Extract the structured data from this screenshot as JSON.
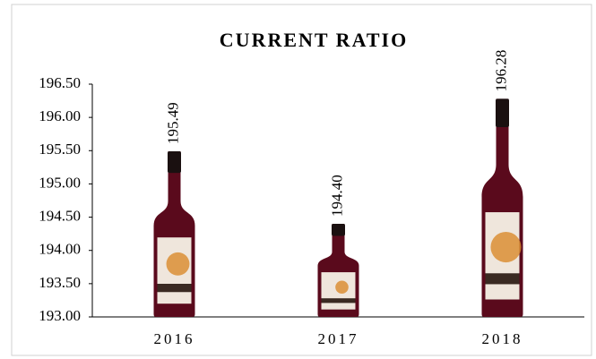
{
  "chart_data": {
    "type": "pictorial-bar",
    "title": "CURRENT RATIO",
    "categories": [
      "2016",
      "2017",
      "2018"
    ],
    "values": [
      195.49,
      194.4,
      196.28
    ],
    "value_labels": [
      "195.49",
      "194.40",
      "196.28"
    ],
    "color": "#5a0a1c",
    "ylim": [
      193,
      196.5
    ],
    "yticks": [
      {
        "value": 193,
        "label": "193.00"
      },
      {
        "value": 193.5,
        "label": "193.50"
      },
      {
        "value": 194,
        "label": "194.00"
      },
      {
        "value": 194.5,
        "label": "194.50"
      },
      {
        "value": 195,
        "label": "195.00"
      },
      {
        "value": 195.5,
        "label": "195.50"
      },
      {
        "value": 196,
        "label": "196.00"
      },
      {
        "value": 196.5,
        "label": "196.50"
      }
    ],
    "grid": false
  }
}
